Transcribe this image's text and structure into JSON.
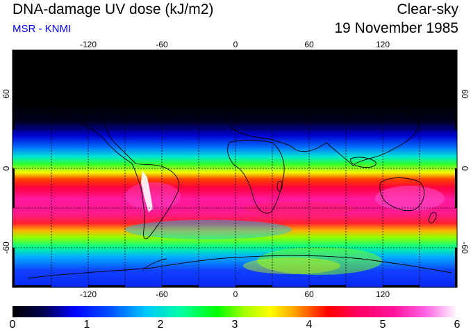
{
  "header": {
    "title": "DNA-damage UV dose (kJ/m2)",
    "source": "MSR - KNMI",
    "condition": "Clear-sky",
    "date": "19 November 1985"
  },
  "map": {
    "lon_ticks": [
      "-120",
      "-60",
      "0",
      "60",
      "120"
    ],
    "lat_ticks": [
      "60",
      "0",
      "-60"
    ]
  },
  "colorbar": {
    "labels": [
      "0",
      "1",
      "2",
      "3",
      "4",
      "5",
      "6"
    ]
  }
}
